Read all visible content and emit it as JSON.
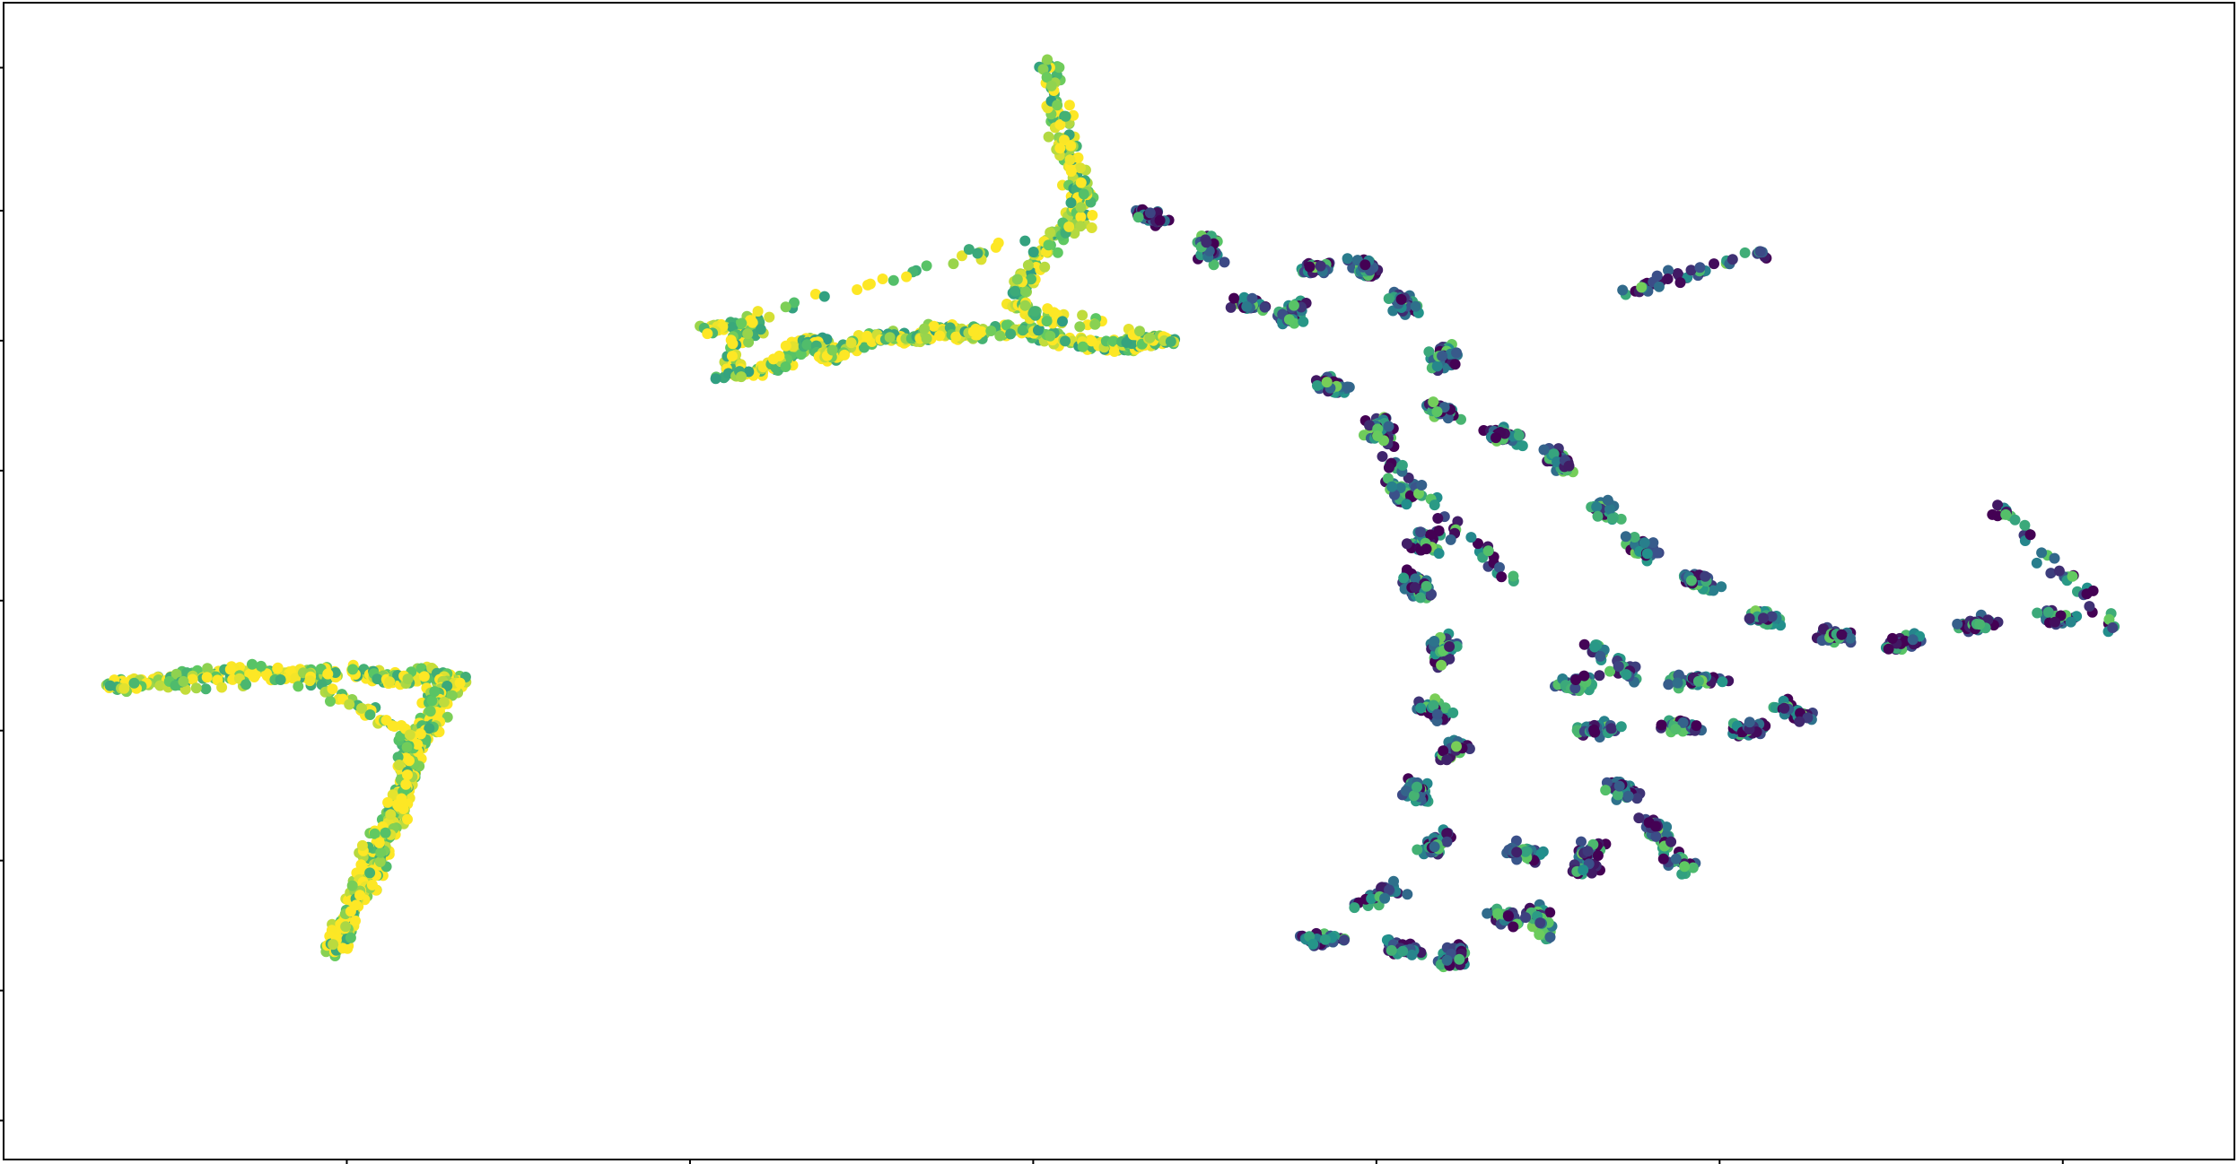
{
  "chart_data": {
    "type": "scatter",
    "title": "",
    "xlabel": "",
    "ylabel": "",
    "xlim": [
      0,
      65
    ],
    "ylim": [
      0,
      89
    ],
    "x_ticks": [
      10,
      20,
      30,
      40,
      50,
      60
    ],
    "y_ticks": [
      3,
      13,
      23,
      33,
      43,
      53,
      63,
      73,
      84
    ],
    "tick_labels_visible": false,
    "grid": false,
    "legend": "none",
    "colormap": "viridis",
    "color_range": [
      0,
      1
    ],
    "clusters": [
      {
        "name": "",
        "color_mean": 0.9,
        "points": [
          [
            3.0,
            36.5,
            0.85
          ],
          [
            5.0,
            37.2,
            0.95
          ],
          [
            7.0,
            37.6,
            0.9
          ],
          [
            8.5,
            37.3,
            0.88
          ],
          [
            10.2,
            37.5,
            0.9
          ],
          [
            11.5,
            36.9,
            0.55
          ],
          [
            12.5,
            37.4,
            0.7
          ],
          [
            13.2,
            36.7,
            0.6
          ],
          [
            12.6,
            35.6,
            0.45
          ],
          [
            12.4,
            33.5,
            0.65
          ],
          [
            12.0,
            31.5,
            0.85
          ],
          [
            11.8,
            29.5,
            0.95
          ],
          [
            11.5,
            27.5,
            0.6
          ],
          [
            11.2,
            25.5,
            0.85
          ],
          [
            10.8,
            23.0,
            0.65
          ],
          [
            10.5,
            21.0,
            0.8
          ],
          [
            10.0,
            18.5,
            0.55
          ],
          [
            9.7,
            16.0,
            0.9
          ],
          [
            11.9,
            32.5,
            0.95
          ],
          [
            9.0,
            36.8,
            0.92
          ]
        ]
      },
      {
        "name": "",
        "color_mean": 0.85,
        "points": [
          [
            20.5,
            63.8,
            0.7
          ],
          [
            22.0,
            64.6,
            0.9
          ],
          [
            21.0,
            60.2,
            0.95
          ],
          [
            22.5,
            61.0,
            0.6
          ],
          [
            23.5,
            63.2,
            0.85
          ],
          [
            24.0,
            61.8,
            0.5
          ],
          [
            25.5,
            63.5,
            0.55
          ],
          [
            26.5,
            63.0,
            0.75
          ],
          [
            27.2,
            64.0,
            0.95
          ],
          [
            28.0,
            63.5,
            0.6
          ],
          [
            29.5,
            63.8,
            0.9
          ],
          [
            31.0,
            63.0,
            0.85
          ],
          [
            32.5,
            62.5,
            0.6
          ],
          [
            33.0,
            62.9,
            0.5
          ],
          [
            34.0,
            63.0,
            0.75
          ],
          [
            29.5,
            65.5,
            0.9
          ],
          [
            30.0,
            69.0,
            0.8
          ],
          [
            31.5,
            73.5,
            0.95
          ],
          [
            31.0,
            77.5,
            0.6
          ],
          [
            30.4,
            84.5,
            0.85
          ],
          [
            31.5,
            72.0,
            0.9
          ]
        ]
      },
      {
        "name": "",
        "color_mean": 0.35,
        "points": [
          [
            33.0,
            73.0,
            0.3
          ],
          [
            35.0,
            70.8,
            0.45
          ],
          [
            36.0,
            66.0,
            0.7
          ],
          [
            37.5,
            64.5,
            0.4
          ],
          [
            38.0,
            68.5,
            0.35
          ],
          [
            39.5,
            69.0,
            0.2
          ],
          [
            40.5,
            66.5,
            0.4
          ],
          [
            42.0,
            62.5,
            0.3
          ],
          [
            41.5,
            58.0,
            0.45
          ],
          [
            43.5,
            56.0,
            0.35
          ],
          [
            45.0,
            54.5,
            0.55
          ],
          [
            46.5,
            50.5,
            0.3
          ],
          [
            47.5,
            47.5,
            0.35
          ],
          [
            49.0,
            45.0,
            0.25
          ],
          [
            51.0,
            42.0,
            0.45
          ],
          [
            53.0,
            40.5,
            0.3
          ],
          [
            55.0,
            39.5,
            0.5
          ],
          [
            57.0,
            41.0,
            0.3
          ],
          [
            59.5,
            41.8,
            0.4
          ],
          [
            61.5,
            41.0,
            0.6
          ],
          [
            51.1,
            69.7,
            0.2
          ],
          [
            38.5,
            60.0,
            0.65
          ],
          [
            40.0,
            57.0,
            0.15
          ],
          [
            40.5,
            52.0,
            0.4
          ],
          [
            41.5,
            48.0,
            0.55
          ],
          [
            41.0,
            45.0,
            0.3
          ],
          [
            42.0,
            40.0,
            0.1
          ],
          [
            41.5,
            35.0,
            0.45
          ],
          [
            42.5,
            32.0,
            0.5
          ],
          [
            41.0,
            29.0,
            0.3
          ],
          [
            42.0,
            25.0,
            0.35
          ],
          [
            40.5,
            21.0,
            0.4
          ],
          [
            38.0,
            17.0,
            0.55
          ],
          [
            40.5,
            16.5,
            0.3
          ],
          [
            42.0,
            15.0,
            0.45
          ],
          [
            43.5,
            19.0,
            0.35
          ],
          [
            45.0,
            17.0,
            0.4
          ],
          [
            44.0,
            24.0,
            0.1
          ],
          [
            46.0,
            22.0,
            0.3
          ],
          [
            47.0,
            29.0,
            0.35
          ],
          [
            48.0,
            26.0,
            0.55
          ],
          [
            49.0,
            22.0,
            0.6
          ],
          [
            46.0,
            33.0,
            0.4
          ],
          [
            48.5,
            33.5,
            0.3
          ],
          [
            50.5,
            33.0,
            0.5
          ],
          [
            52.5,
            34.0,
            0.35
          ],
          [
            50.0,
            37.0,
            0.25
          ],
          [
            45.5,
            36.5,
            0.15
          ],
          [
            47.5,
            37.0,
            0.3
          ],
          [
            44.0,
            44.5,
            0.6
          ]
        ]
      },
      {
        "name": "",
        "color_mean": 0.4,
        "points": [
          [
            51.2,
            69.8,
            0.4
          ]
        ]
      }
    ]
  }
}
